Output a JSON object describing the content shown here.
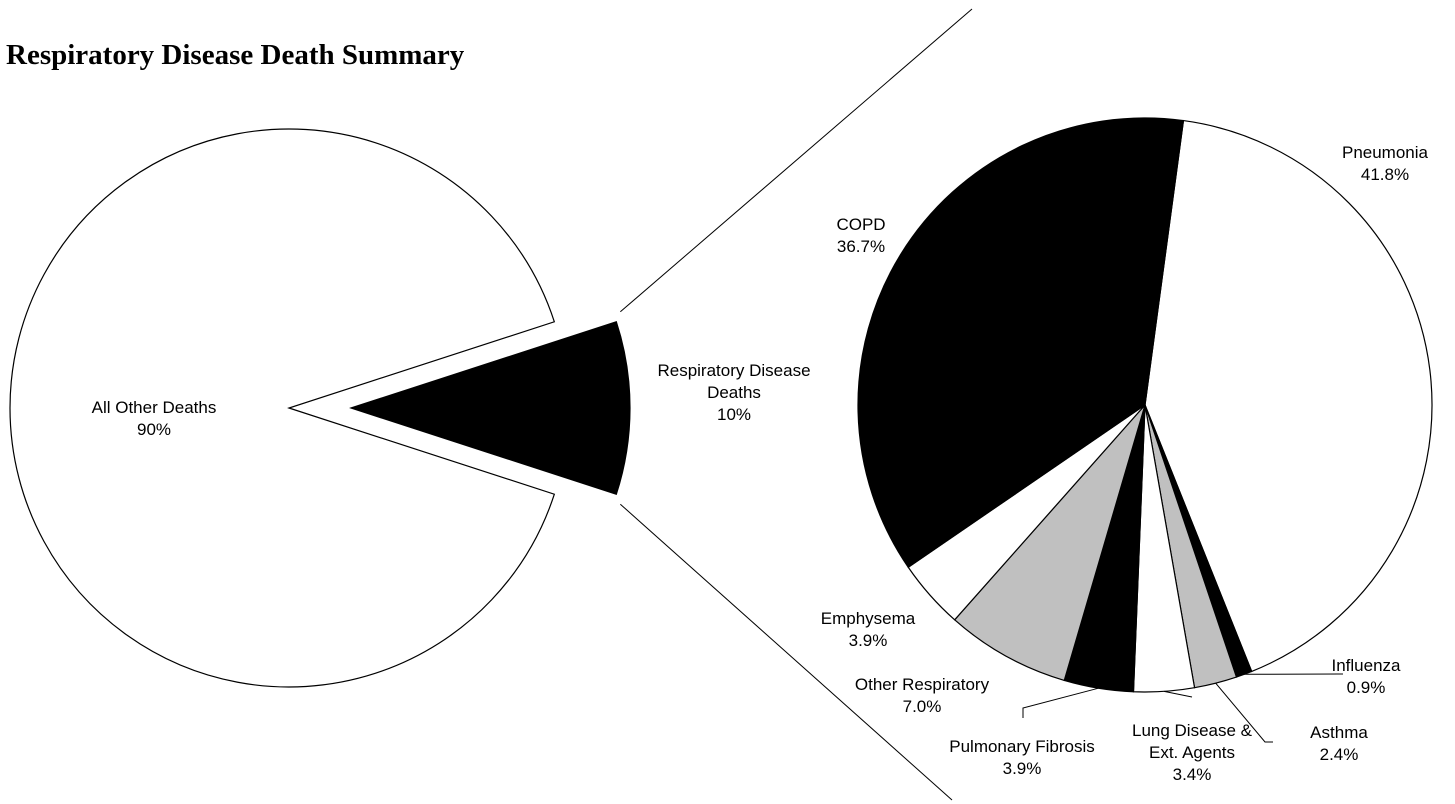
{
  "chart_data": {
    "type": "pie",
    "title": "Respiratory Disease Death Summary",
    "main_pie": {
      "slices": [
        {
          "label": "All Other Deaths",
          "pct_label": "90%",
          "value": 90,
          "color": "#ffffff"
        },
        {
          "label": "Respiratory Disease Deaths",
          "label_lines": [
            "Respiratory Disease",
            "Deaths"
          ],
          "pct_label": "10%",
          "value": 10,
          "color": "#000000",
          "exploded": true
        }
      ]
    },
    "breakdown_pie": {
      "of_slice": "Respiratory Disease Deaths",
      "slices": [
        {
          "label": "Pneumonia",
          "pct_label": "41.8%",
          "value": 41.8,
          "color": "#ffffff"
        },
        {
          "label": "Influenza",
          "pct_label": "0.9%",
          "value": 0.9,
          "color": "#000000"
        },
        {
          "label": "Asthma",
          "pct_label": "2.4%",
          "value": 2.4,
          "color": "#c0c0c0"
        },
        {
          "label": "Lung Disease & Ext. Agents",
          "label_lines": [
            "Lung Disease &",
            "Ext. Agents"
          ],
          "pct_label": "3.4%",
          "value": 3.4,
          "color": "#ffffff"
        },
        {
          "label": "Pulmonary Fibrosis",
          "pct_label": "3.9%",
          "value": 3.9,
          "color": "#000000"
        },
        {
          "label": "Other Respiratory",
          "pct_label": "7.0%",
          "value": 7.0,
          "color": "#c0c0c0"
        },
        {
          "label": "Emphysema",
          "pct_label": "3.9%",
          "value": 3.9,
          "color": "#ffffff"
        },
        {
          "label": "COPD",
          "pct_label": "36.7%",
          "value": 36.7,
          "color": "#000000"
        }
      ]
    },
    "legend": "none"
  }
}
